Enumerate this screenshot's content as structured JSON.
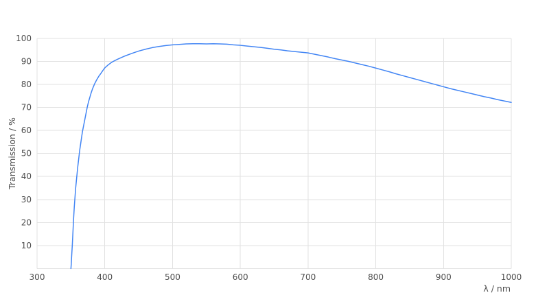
{
  "chart_data": {
    "type": "line",
    "title": "",
    "xlabel": "λ / nm",
    "ylabel": "Transmission / %",
    "xlim": [
      300,
      1000
    ],
    "ylim": [
      0,
      100
    ],
    "x_ticks": [
      300,
      400,
      500,
      600,
      700,
      800,
      900,
      1000
    ],
    "y_ticks": [
      10,
      20,
      30,
      40,
      50,
      60,
      70,
      80,
      90,
      100
    ],
    "grid": true,
    "legend": "none",
    "series": [
      {
        "name": "Transmission",
        "color": "#4285f4",
        "points": [
          [
            350,
            0
          ],
          [
            350.5,
            2
          ],
          [
            351,
            5
          ],
          [
            352,
            10
          ],
          [
            353,
            16
          ],
          [
            354,
            22
          ],
          [
            355,
            27
          ],
          [
            356,
            31
          ],
          [
            357,
            35
          ],
          [
            358,
            38
          ],
          [
            359,
            41
          ],
          [
            360,
            44
          ],
          [
            361,
            46.5
          ],
          [
            362,
            49
          ],
          [
            363,
            51.5
          ],
          [
            364,
            53.5
          ],
          [
            365,
            55.5
          ],
          [
            366,
            57.5
          ],
          [
            367,
            59.5
          ],
          [
            368,
            61
          ],
          [
            370,
            64
          ],
          [
            372,
            67
          ],
          [
            374,
            70
          ],
          [
            376,
            72.5
          ],
          [
            378,
            74.5
          ],
          [
            380,
            76.5
          ],
          [
            382,
            78.2
          ],
          [
            385,
            80.3
          ],
          [
            388,
            82
          ],
          [
            391,
            83.5
          ],
          [
            394,
            84.7
          ],
          [
            397,
            86
          ],
          [
            400,
            87.2
          ],
          [
            405,
            88.5
          ],
          [
            410,
            89.6
          ],
          [
            415,
            90.4
          ],
          [
            420,
            91.1
          ],
          [
            430,
            92.4
          ],
          [
            440,
            93.5
          ],
          [
            450,
            94.5
          ],
          [
            460,
            95.3
          ],
          [
            470,
            96.0
          ],
          [
            480,
            96.5
          ],
          [
            490,
            96.9
          ],
          [
            500,
            97.2
          ],
          [
            510,
            97.4
          ],
          [
            520,
            97.6
          ],
          [
            530,
            97.7
          ],
          [
            540,
            97.7
          ],
          [
            550,
            97.6
          ],
          [
            560,
            97.7
          ],
          [
            570,
            97.6
          ],
          [
            580,
            97.5
          ],
          [
            590,
            97.2
          ],
          [
            600,
            97.0
          ],
          [
            610,
            96.7
          ],
          [
            620,
            96.4
          ],
          [
            630,
            96.1
          ],
          [
            640,
            95.7
          ],
          [
            650,
            95.3
          ],
          [
            660,
            95.0
          ],
          [
            670,
            94.6
          ],
          [
            680,
            94.3
          ],
          [
            690,
            94.0
          ],
          [
            700,
            93.7
          ],
          [
            710,
            93.1
          ],
          [
            720,
            92.5
          ],
          [
            730,
            91.9
          ],
          [
            740,
            91.2
          ],
          [
            750,
            90.6
          ],
          [
            760,
            90.0
          ],
          [
            770,
            89.3
          ],
          [
            780,
            88.6
          ],
          [
            790,
            87.9
          ],
          [
            800,
            87.1
          ],
          [
            810,
            86.3
          ],
          [
            820,
            85.5
          ],
          [
            830,
            84.6
          ],
          [
            840,
            83.8
          ],
          [
            850,
            83.0
          ],
          [
            860,
            82.2
          ],
          [
            870,
            81.4
          ],
          [
            880,
            80.6
          ],
          [
            890,
            79.8
          ],
          [
            900,
            79.0
          ],
          [
            910,
            78.2
          ],
          [
            920,
            77.5
          ],
          [
            930,
            76.8
          ],
          [
            940,
            76.1
          ],
          [
            950,
            75.4
          ],
          [
            960,
            74.7
          ],
          [
            970,
            74.1
          ],
          [
            980,
            73.4
          ],
          [
            990,
            72.8
          ],
          [
            1000,
            72.2
          ]
        ]
      }
    ]
  },
  "colors": {
    "background": "#ffffff",
    "grid": "#e2e2e2",
    "text": "#4d4d4d",
    "line": "#4285f4"
  }
}
